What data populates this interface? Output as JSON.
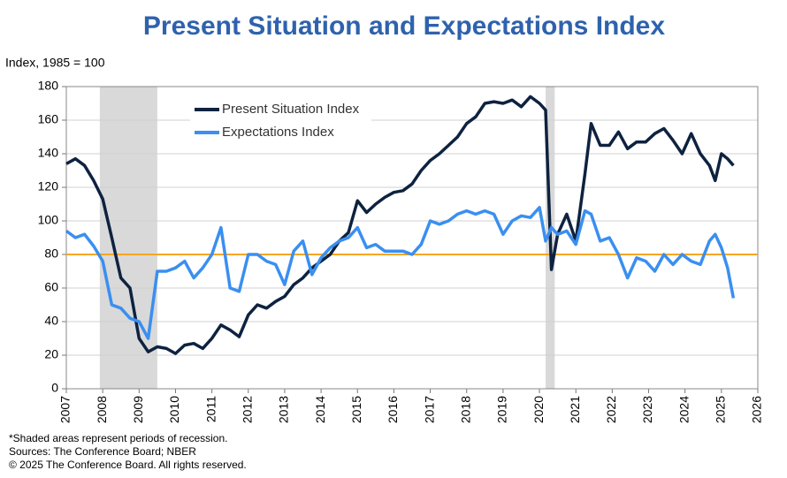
{
  "chart_data": {
    "type": "line",
    "title": "Present Situation and Expectations Index",
    "y_label": "Index, 1985 = 100",
    "notes": [
      "*Shaded areas represent periods of recession.",
      "Sources: The Conference Board;  NBER",
      "© 2025 The Conference Board. All rights reserved."
    ],
    "x": [
      2007.0,
      2007.25,
      2007.5,
      2007.75,
      2008.0,
      2008.25,
      2008.5,
      2008.75,
      2009.0,
      2009.25,
      2009.5,
      2009.75,
      2010.0,
      2010.25,
      2010.5,
      2010.75,
      2011.0,
      2011.25,
      2011.5,
      2011.75,
      2012.0,
      2012.25,
      2012.5,
      2012.75,
      2013.0,
      2013.25,
      2013.5,
      2013.75,
      2014.0,
      2014.25,
      2014.5,
      2014.75,
      2015.0,
      2015.25,
      2015.5,
      2015.75,
      2016.0,
      2016.25,
      2016.5,
      2016.75,
      2017.0,
      2017.25,
      2017.5,
      2017.75,
      2018.0,
      2018.25,
      2018.5,
      2018.75,
      2019.0,
      2019.25,
      2019.5,
      2019.75,
      2020.0,
      2020.17,
      2020.33,
      2020.5,
      2020.75,
      2021.0,
      2021.25,
      2021.42,
      2021.67,
      2021.92,
      2022.17,
      2022.42,
      2022.67,
      2022.92,
      2023.17,
      2023.42,
      2023.67,
      2023.92,
      2024.17,
      2024.42,
      2024.67,
      2024.83,
      2025.0,
      2025.17,
      2025.33
    ],
    "series": [
      {
        "name": "Present Situation Index",
        "color": "#0e2240",
        "values": [
          134,
          137,
          133,
          124,
          113,
          90,
          66,
          60,
          30,
          22,
          25,
          24,
          21,
          26,
          27,
          24,
          30,
          38,
          35,
          31,
          44,
          50,
          48,
          52,
          55,
          62,
          66,
          72,
          76,
          80,
          88,
          93,
          112,
          105,
          110,
          114,
          117,
          118,
          122,
          130,
          136,
          140,
          145,
          150,
          158,
          162,
          170,
          171,
          170,
          172,
          168,
          174,
          170,
          166,
          71,
          92,
          104,
          88,
          128,
          158,
          145,
          145,
          153,
          143,
          147,
          147,
          152,
          155,
          148,
          140,
          152,
          140,
          133,
          124,
          140,
          137,
          133
        ]
      },
      {
        "name": "Expectations Index",
        "color": "#3a8ff0",
        "values": [
          94,
          90,
          92,
          85,
          76,
          50,
          48,
          42,
          40,
          30,
          70,
          70,
          72,
          76,
          66,
          72,
          80,
          96,
          60,
          58,
          80,
          80,
          76,
          74,
          62,
          82,
          88,
          68,
          78,
          84,
          88,
          90,
          96,
          84,
          86,
          82,
          82,
          82,
          80,
          86,
          100,
          98,
          100,
          104,
          106,
          104,
          106,
          104,
          92,
          100,
          103,
          102,
          108,
          88,
          96,
          92,
          94,
          86,
          106,
          104,
          88,
          90,
          80,
          66,
          78,
          76,
          70,
          80,
          74,
          80,
          76,
          74,
          88,
          92,
          84,
          72,
          54
        ]
      }
    ],
    "recessions": [
      [
        2007.92,
        2009.5
      ],
      [
        2020.17,
        2020.42
      ]
    ],
    "recession_color": "#d9d9d9",
    "reference_line": {
      "value": 80,
      "color": "#f5a623"
    },
    "xlim": [
      2007,
      2026
    ],
    "xticks": [
      2007,
      2008,
      2009,
      2010,
      2011,
      2012,
      2013,
      2014,
      2015,
      2016,
      2017,
      2018,
      2019,
      2020,
      2021,
      2022,
      2023,
      2024,
      2025,
      2026
    ],
    "ylim": [
      0,
      180
    ],
    "yticks": [
      0,
      20,
      40,
      60,
      80,
      100,
      120,
      140,
      160,
      180
    ],
    "grid": true,
    "legend": "top-left"
  }
}
